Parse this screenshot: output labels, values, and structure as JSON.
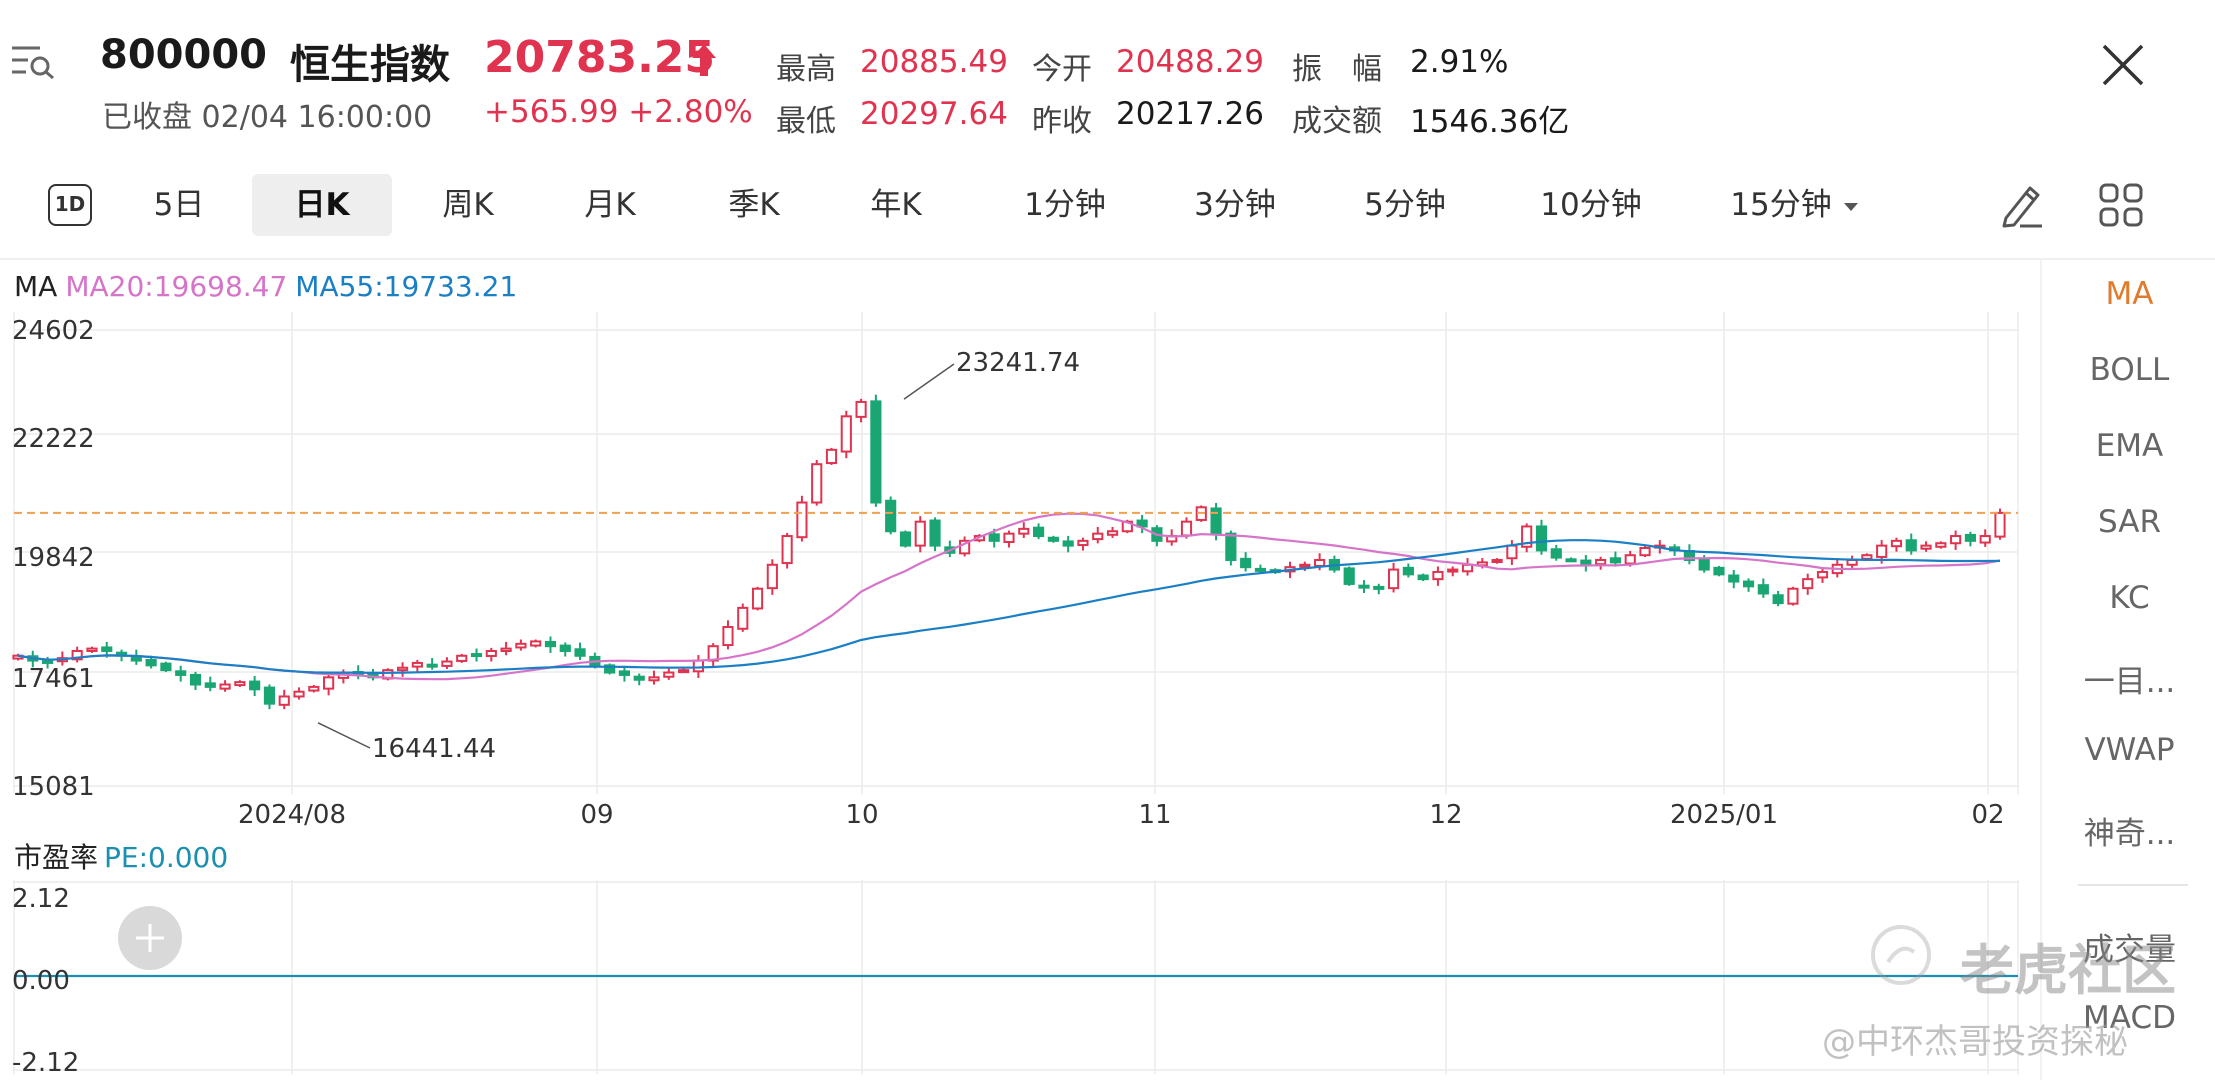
{
  "header": {
    "code": "800000",
    "name": "恒生指数",
    "price": "20783.25",
    "status": "已收盘 02/04 16:00:00",
    "change": "+565.99 +2.80%",
    "stats": [
      {
        "label": "最高",
        "value": "20885.49",
        "color": "red"
      },
      {
        "label": "今开",
        "value": "20488.29",
        "color": "red"
      },
      {
        "label": "振　幅",
        "value": "2.91%",
        "color": "black"
      },
      {
        "label": "最低",
        "value": "20297.64",
        "color": "red"
      },
      {
        "label": "昨收",
        "value": "20217.26",
        "color": "black"
      },
      {
        "label": "成交额",
        "value": "1546.36亿",
        "color": "black"
      }
    ]
  },
  "tabs": {
    "first": "1D",
    "items": [
      "5日",
      "日K",
      "周K",
      "月K",
      "季K",
      "年K",
      "1分钟",
      "3分钟",
      "5分钟",
      "10分钟",
      "15分钟"
    ],
    "active": "日K"
  },
  "indicators": [
    "MA",
    "BOLL",
    "EMA",
    "SAR",
    "KC",
    "一目...",
    "VWAP",
    "神奇...",
    "成交量",
    "MACD"
  ],
  "legend": {
    "ma": "MA",
    "ma20": "MA20:19698.47",
    "ma55": "MA55:19733.21",
    "pe_label": "市盈率",
    "pe_value": "PE:0.000"
  },
  "colors": {
    "up": "#e0334f",
    "down": "#1aa672",
    "ma20": "#d674c9",
    "ma55": "#1a7fc4",
    "pe_line": "#1a8fb0",
    "ref_line": "#f0a050"
  },
  "watermark": {
    "brand": "老虎社区",
    "author": "@中环杰哥投资探秘"
  },
  "chart_data": [
    {
      "type": "candlestick",
      "y_ticks": [
        "24602",
        "22222",
        "19842",
        "17461",
        "15081"
      ],
      "ylim": [
        15081,
        24602
      ],
      "x_ticks": [
        "2024/08",
        "09",
        "10",
        "11",
        "12",
        "2025/01",
        "02"
      ],
      "annotations": [
        {
          "text": "23241.74",
          "value": 23241.74
        },
        {
          "text": "16441.44",
          "value": 16441.44
        }
      ],
      "reference_line": 20783.25,
      "close": [
        17802,
        17700,
        17650,
        17750,
        17900,
        17950,
        17900,
        17800,
        17700,
        17600,
        17500,
        17400,
        17200,
        17150,
        17200,
        17250,
        17100,
        16800,
        16950,
        17050,
        17150,
        17350,
        17450,
        17400,
        17350,
        17500,
        17550,
        17650,
        17600,
        17680,
        17800,
        17820,
        17900,
        17950,
        18050,
        18100,
        18000,
        17900,
        17800,
        17600,
        17450,
        17400,
        17300,
        17350,
        17450,
        17500,
        17700,
        18000,
        18400,
        18800,
        19200,
        19700,
        20300,
        21000,
        21800,
        22100,
        22800,
        23100,
        21000,
        20400,
        20100,
        20600,
        20100,
        19950,
        20200,
        20300,
        20200,
        20350,
        20450,
        20300,
        20200,
        20100,
        20200,
        20350,
        20400,
        20600,
        20500,
        20200,
        20300,
        20600,
        20900,
        20350,
        19800,
        19650,
        19600,
        19550,
        19650,
        19700,
        19800,
        19600,
        19300,
        19250,
        19200,
        19600,
        19500,
        19400,
        19550,
        19600,
        19700,
        19750,
        19800,
        20100,
        20500,
        20000,
        19850,
        19800,
        19700,
        19800,
        19750,
        19900,
        20050,
        20100,
        20000,
        19800,
        19600,
        19500,
        19350,
        19250,
        19100,
        18900,
        19200,
        19400,
        19550,
        19700,
        19800,
        19900,
        20100,
        20200,
        20000,
        20100,
        20150,
        20300,
        20200,
        20300,
        20783
      ]
    },
    {
      "type": "line",
      "name": "PE",
      "y_ticks": [
        "2.12",
        "0.00",
        "-2.12"
      ],
      "ylim": [
        -2.12,
        2.12
      ],
      "value": 0.0
    }
  ]
}
